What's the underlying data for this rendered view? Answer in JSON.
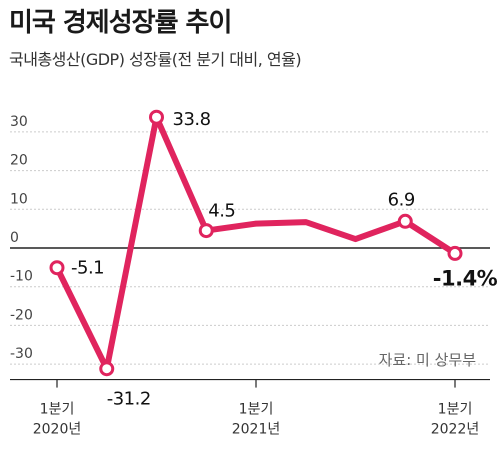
{
  "title": "미국 경제성장률 추이",
  "subtitle": "국내총생산(GDP) 성장률(전 분기 대비, 연율)",
  "source": "자료: 미 상무부",
  "colors": {
    "line": "#e0245e",
    "axis": "#444444",
    "grid": "#cccccc"
  },
  "chart_data": {
    "type": "line",
    "title": "미국 경제성장률 추이",
    "subtitle": "국내총생산(GDP) 성장률(전 분기 대비, 연율)",
    "categories": [
      "2020 Q1",
      "2020 Q2",
      "2020 Q3",
      "2020 Q4",
      "2021 Q1",
      "2021 Q2",
      "2021 Q3",
      "2021 Q4",
      "2022 Q1"
    ],
    "values": [
      -5.1,
      -31.2,
      33.8,
      4.5,
      6.3,
      6.7,
      2.3,
      6.9,
      -1.4
    ],
    "data_labels": [
      "-5.1",
      "-31.2",
      "33.8",
      "4.5",
      null,
      null,
      null,
      "6.9",
      "-1.4%"
    ],
    "marked_points": [
      0,
      1,
      2,
      3,
      7,
      8
    ],
    "ylim": [
      -34,
      37
    ],
    "yticks": [
      30,
      20,
      10,
      0,
      -10,
      -20,
      -30
    ],
    "x_tick_labels": [
      {
        "index": 0,
        "line1": "1분기",
        "line2": "2020년"
      },
      {
        "index": 4,
        "line1": "1분기",
        "line2": "2021년"
      },
      {
        "index": 8,
        "line1": "1분기",
        "line2": "2022년"
      }
    ],
    "grid": true
  }
}
